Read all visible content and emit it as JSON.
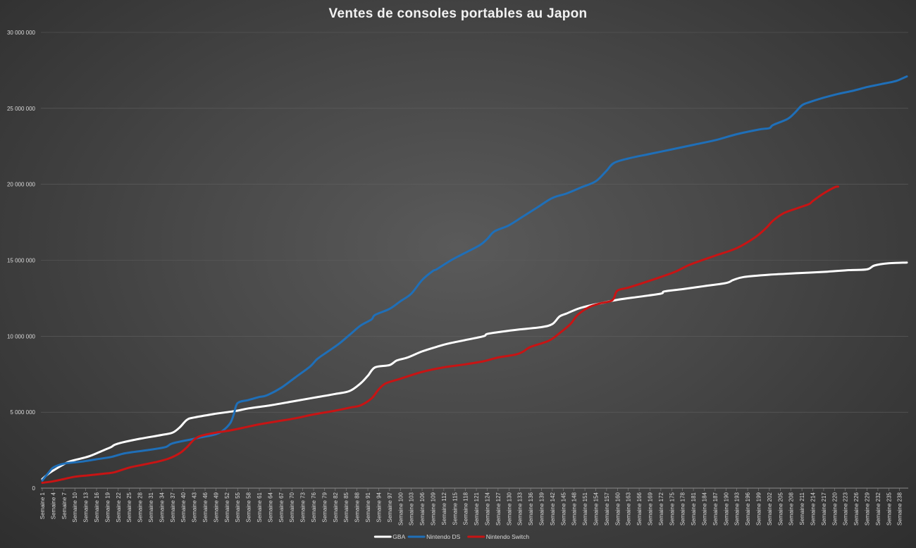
{
  "chart_data": {
    "type": "line",
    "title": "Ventes de consoles portables au Japon",
    "xlabel": "",
    "ylabel": "",
    "ylim": [
      0,
      30000000
    ],
    "yticks": [
      0,
      5000000,
      10000000,
      15000000,
      20000000,
      25000000,
      30000000
    ],
    "ytick_labels": [
      "0",
      "5 000 000",
      "10 000 000",
      "15 000 000",
      "20 000 000",
      "25 000 000",
      "30 000 000"
    ],
    "x_range": [
      1,
      240
    ],
    "xtick_step": 3,
    "xtick_prefix": "Semaine",
    "grid": true,
    "legend_position": "bottom",
    "series": [
      {
        "name": "GBA",
        "color": "#ffffff",
        "points": [
          [
            1,
            600000
          ],
          [
            3,
            1000000
          ],
          [
            5,
            1300000
          ],
          [
            8,
            1700000
          ],
          [
            10,
            1850000
          ],
          [
            14,
            2100000
          ],
          [
            18,
            2500000
          ],
          [
            20,
            2700000
          ],
          [
            21,
            2850000
          ],
          [
            23,
            3000000
          ],
          [
            28,
            3250000
          ],
          [
            34,
            3500000
          ],
          [
            37,
            3650000
          ],
          [
            39,
            4000000
          ],
          [
            41,
            4500000
          ],
          [
            43,
            4650000
          ],
          [
            49,
            4900000
          ],
          [
            52,
            5000000
          ],
          [
            55,
            5100000
          ],
          [
            58,
            5250000
          ],
          [
            64,
            5450000
          ],
          [
            70,
            5700000
          ],
          [
            76,
            5950000
          ],
          [
            82,
            6200000
          ],
          [
            86,
            6400000
          ],
          [
            89,
            6900000
          ],
          [
            91,
            7400000
          ],
          [
            93,
            7950000
          ],
          [
            97,
            8100000
          ],
          [
            99,
            8400000
          ],
          [
            102,
            8600000
          ],
          [
            106,
            9000000
          ],
          [
            110,
            9300000
          ],
          [
            113,
            9500000
          ],
          [
            118,
            9750000
          ],
          [
            123,
            10000000
          ],
          [
            124,
            10150000
          ],
          [
            128,
            10300000
          ],
          [
            133,
            10450000
          ],
          [
            139,
            10600000
          ],
          [
            142,
            10800000
          ],
          [
            144,
            11300000
          ],
          [
            146,
            11500000
          ],
          [
            149,
            11800000
          ],
          [
            152,
            12000000
          ],
          [
            156,
            12200000
          ],
          [
            160,
            12400000
          ],
          [
            166,
            12600000
          ],
          [
            172,
            12800000
          ],
          [
            173,
            12950000
          ],
          [
            178,
            13100000
          ],
          [
            184,
            13300000
          ],
          [
            190,
            13500000
          ],
          [
            192,
            13700000
          ],
          [
            195,
            13900000
          ],
          [
            202,
            14050000
          ],
          [
            210,
            14150000
          ],
          [
            218,
            14250000
          ],
          [
            224,
            14350000
          ],
          [
            229,
            14400000
          ],
          [
            231,
            14650000
          ],
          [
            235,
            14800000
          ],
          [
            240,
            14850000
          ]
        ]
      },
      {
        "name": "Nintendo DS",
        "color": "#1f6fb8",
        "points": [
          [
            1,
            500000
          ],
          [
            3,
            1100000
          ],
          [
            4,
            1350000
          ],
          [
            6,
            1550000
          ],
          [
            8,
            1650000
          ],
          [
            12,
            1750000
          ],
          [
            16,
            1900000
          ],
          [
            20,
            2050000
          ],
          [
            24,
            2300000
          ],
          [
            30,
            2500000
          ],
          [
            35,
            2700000
          ],
          [
            37,
            2950000
          ],
          [
            42,
            3200000
          ],
          [
            45,
            3350000
          ],
          [
            49,
            3550000
          ],
          [
            51,
            3800000
          ],
          [
            53,
            4300000
          ],
          [
            54,
            4900000
          ],
          [
            55,
            5600000
          ],
          [
            58,
            5800000
          ],
          [
            61,
            6000000
          ],
          [
            63,
            6100000
          ],
          [
            67,
            6600000
          ],
          [
            71,
            7300000
          ],
          [
            75,
            8000000
          ],
          [
            77,
            8500000
          ],
          [
            80,
            9000000
          ],
          [
            83,
            9500000
          ],
          [
            86,
            10100000
          ],
          [
            89,
            10700000
          ],
          [
            92,
            11100000
          ],
          [
            93,
            11400000
          ],
          [
            97,
            11800000
          ],
          [
            100,
            12300000
          ],
          [
            103,
            12800000
          ],
          [
            106,
            13700000
          ],
          [
            109,
            14300000
          ],
          [
            110,
            14400000
          ],
          [
            114,
            15000000
          ],
          [
            118,
            15500000
          ],
          [
            122,
            16000000
          ],
          [
            124,
            16400000
          ],
          [
            126,
            16900000
          ],
          [
            130,
            17300000
          ],
          [
            134,
            17900000
          ],
          [
            138,
            18500000
          ],
          [
            142,
            19100000
          ],
          [
            146,
            19400000
          ],
          [
            150,
            19800000
          ],
          [
            154,
            20200000
          ],
          [
            157,
            20900000
          ],
          [
            159,
            21400000
          ],
          [
            163,
            21700000
          ],
          [
            169,
            22000000
          ],
          [
            175,
            22300000
          ],
          [
            181,
            22600000
          ],
          [
            187,
            22900000
          ],
          [
            193,
            23300000
          ],
          [
            199,
            23600000
          ],
          [
            202,
            23700000
          ],
          [
            203,
            23900000
          ],
          [
            207,
            24300000
          ],
          [
            209,
            24700000
          ],
          [
            211,
            25200000
          ],
          [
            213,
            25400000
          ],
          [
            217,
            25700000
          ],
          [
            221,
            25950000
          ],
          [
            225,
            26150000
          ],
          [
            229,
            26400000
          ],
          [
            233,
            26600000
          ],
          [
            237,
            26800000
          ],
          [
            239,
            27000000
          ],
          [
            240,
            27100000
          ]
        ]
      },
      {
        "name": "Nintendo Switch",
        "color": "#c81414",
        "points": [
          [
            1,
            350000
          ],
          [
            4,
            450000
          ],
          [
            7,
            600000
          ],
          [
            10,
            750000
          ],
          [
            14,
            850000
          ],
          [
            18,
            950000
          ],
          [
            21,
            1050000
          ],
          [
            25,
            1350000
          ],
          [
            29,
            1550000
          ],
          [
            33,
            1750000
          ],
          [
            36,
            1950000
          ],
          [
            39,
            2300000
          ],
          [
            41,
            2700000
          ],
          [
            43,
            3200000
          ],
          [
            45,
            3450000
          ],
          [
            49,
            3650000
          ],
          [
            53,
            3800000
          ],
          [
            57,
            4000000
          ],
          [
            61,
            4200000
          ],
          [
            66,
            4400000
          ],
          [
            71,
            4600000
          ],
          [
            76,
            4850000
          ],
          [
            82,
            5100000
          ],
          [
            86,
            5300000
          ],
          [
            89,
            5450000
          ],
          [
            92,
            5900000
          ],
          [
            94,
            6500000
          ],
          [
            96,
            6900000
          ],
          [
            100,
            7200000
          ],
          [
            106,
            7650000
          ],
          [
            112,
            7950000
          ],
          [
            118,
            8150000
          ],
          [
            123,
            8350000
          ],
          [
            127,
            8600000
          ],
          [
            132,
            8800000
          ],
          [
            134,
            9000000
          ],
          [
            136,
            9300000
          ],
          [
            141,
            9700000
          ],
          [
            144,
            10200000
          ],
          [
            147,
            10800000
          ],
          [
            149,
            11400000
          ],
          [
            152,
            11900000
          ],
          [
            155,
            12150000
          ],
          [
            158,
            12300000
          ],
          [
            159,
            12500000
          ],
          [
            160,
            13000000
          ],
          [
            163,
            13200000
          ],
          [
            167,
            13500000
          ],
          [
            172,
            13900000
          ],
          [
            176,
            14250000
          ],
          [
            179,
            14600000
          ],
          [
            181,
            14800000
          ],
          [
            187,
            15300000
          ],
          [
            193,
            15800000
          ],
          [
            198,
            16500000
          ],
          [
            201,
            17100000
          ],
          [
            203,
            17600000
          ],
          [
            206,
            18100000
          ],
          [
            210,
            18450000
          ],
          [
            213,
            18700000
          ],
          [
            214,
            18900000
          ],
          [
            217,
            19400000
          ],
          [
            220,
            19800000
          ],
          [
            221,
            19850000
          ]
        ]
      }
    ]
  }
}
